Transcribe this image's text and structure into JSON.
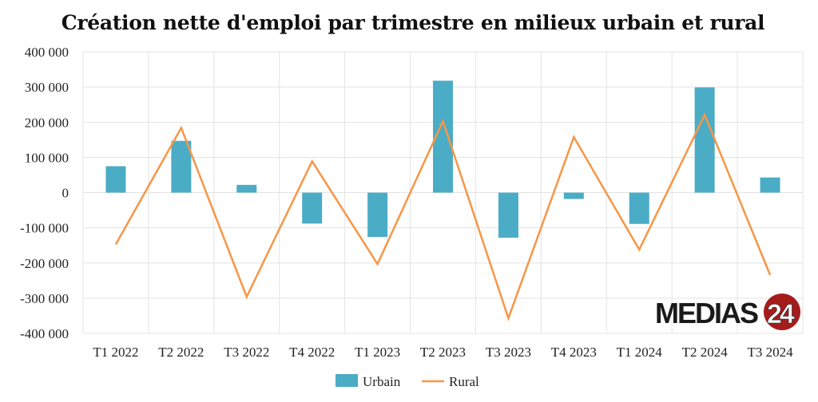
{
  "chart_data": {
    "type": "bar+line",
    "title": "Création nette d'emploi par trimestre en milieux urbain et rural",
    "categories": [
      "T1 2022",
      "T2 2022",
      "T3 2022",
      "T4 2022",
      "T1 2023",
      "T2 2023",
      "T3 2023",
      "T4 2023",
      "T1 2024",
      "T2 2024",
      "T3 2024"
    ],
    "series": [
      {
        "name": "Urbain",
        "type": "bar",
        "color": "#4BACC6",
        "values": [
          75000,
          147000,
          22000,
          -88000,
          -126000,
          318000,
          -128000,
          -18000,
          -89000,
          299000,
          43000
        ]
      },
      {
        "name": "Rural",
        "type": "line",
        "color": "#F79646",
        "values": [
          -147000,
          184000,
          -296000,
          89000,
          -203000,
          203000,
          -357000,
          158000,
          -162000,
          221000,
          -234000
        ]
      }
    ],
    "ylim": [
      -400000,
      400000
    ],
    "yticks": [
      400000,
      300000,
      200000,
      100000,
      0,
      -100000,
      -200000,
      -300000,
      -400000
    ],
    "ytick_labels": [
      "400 000",
      "300 000",
      "200 000",
      "100 000",
      "0",
      "-100 000",
      "-200 000",
      "-300 000",
      "-400 000"
    ],
    "grid": true,
    "legend": "bottom"
  },
  "logo": {
    "text": "MEDIAS24",
    "colors": {
      "text": "#1a1a1a",
      "circle": "#A51C1C"
    }
  }
}
